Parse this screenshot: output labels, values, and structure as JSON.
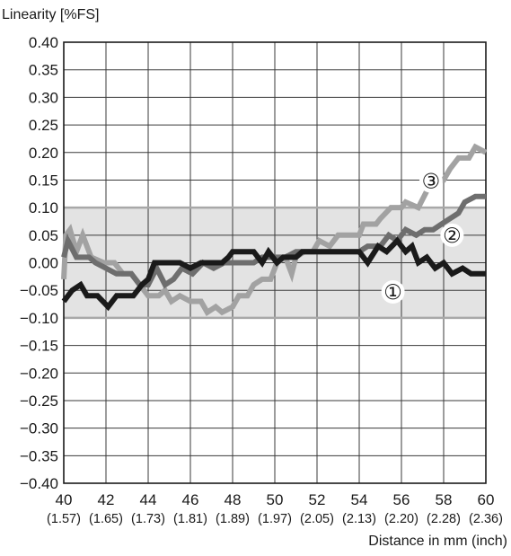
{
  "chart_data": {
    "type": "line",
    "ylabel": "Linearity [%FS]",
    "xlabel": "Distance in mm (inch)",
    "xlim": [
      40,
      60
    ],
    "ylim": [
      -0.4,
      0.4
    ],
    "grid": true,
    "x_ticks": [
      {
        "value": 40,
        "label": "40",
        "sub": "(1.57)"
      },
      {
        "value": 42,
        "label": "42",
        "sub": "(1.65)"
      },
      {
        "value": 44,
        "label": "44",
        "sub": "(1.73)"
      },
      {
        "value": 46,
        "label": "46",
        "sub": "(1.81)"
      },
      {
        "value": 48,
        "label": "48",
        "sub": "(1.89)"
      },
      {
        "value": 50,
        "label": "50",
        "sub": "(1.97)"
      },
      {
        "value": 52,
        "label": "52",
        "sub": "(2.05)"
      },
      {
        "value": 54,
        "label": "54",
        "sub": "(2.13)"
      },
      {
        "value": 56,
        "label": "56",
        "sub": "(2.20)"
      },
      {
        "value": 58,
        "label": "58",
        "sub": "(2.28)"
      },
      {
        "value": 60,
        "label": "60",
        "sub": "(2.36)"
      }
    ],
    "y_ticks": [
      {
        "value": 0.4,
        "label": "0.40"
      },
      {
        "value": 0.35,
        "label": "0.35"
      },
      {
        "value": 0.3,
        "label": "0.30"
      },
      {
        "value": 0.25,
        "label": "0.25"
      },
      {
        "value": 0.2,
        "label": "0.20"
      },
      {
        "value": 0.15,
        "label": "0.15"
      },
      {
        "value": 0.1,
        "label": "0.10"
      },
      {
        "value": 0.05,
        "label": "0.05"
      },
      {
        "value": 0.0,
        "label": "0.00"
      },
      {
        "value": -0.05,
        "label": "−0.05"
      },
      {
        "value": -0.1,
        "label": "−0.10"
      },
      {
        "value": -0.15,
        "label": "−0.15"
      },
      {
        "value": -0.2,
        "label": "−0.20"
      },
      {
        "value": -0.25,
        "label": "−0.25"
      },
      {
        "value": -0.3,
        "label": "−0.30"
      },
      {
        "value": -0.35,
        "label": "−0.35"
      },
      {
        "value": -0.4,
        "label": "−0.40"
      }
    ],
    "tolerance_band": {
      "y_min": -0.1,
      "y_max": 0.1,
      "fill": "#e3e3e3",
      "edge_color": "#a8a8a8"
    },
    "series": [
      {
        "marker": "①",
        "color": "#1a1a1a",
        "label_at": {
          "x": 55.6,
          "y": -0.053
        },
        "points": [
          [
            40,
            -0.07
          ],
          [
            40.4,
            -0.05
          ],
          [
            40.8,
            -0.04
          ],
          [
            41.1,
            -0.06
          ],
          [
            41.6,
            -0.06
          ],
          [
            42.1,
            -0.08
          ],
          [
            42.5,
            -0.06
          ],
          [
            43.3,
            -0.06
          ],
          [
            43.7,
            -0.04
          ],
          [
            44.0,
            -0.03
          ],
          [
            44.3,
            0.0
          ],
          [
            45.0,
            0.0
          ],
          [
            45.5,
            0.0
          ],
          [
            46.0,
            -0.01
          ],
          [
            46.5,
            0.0
          ],
          [
            47.0,
            0.0
          ],
          [
            47.5,
            0.0
          ],
          [
            47.8,
            0.01
          ],
          [
            48.0,
            0.02
          ],
          [
            49.0,
            0.02
          ],
          [
            49.4,
            0.0
          ],
          [
            49.7,
            0.02
          ],
          [
            50.1,
            0.0
          ],
          [
            50.4,
            0.01
          ],
          [
            51.0,
            0.01
          ],
          [
            51.3,
            0.02
          ],
          [
            54.0,
            0.02
          ],
          [
            54.4,
            0.0
          ],
          [
            54.9,
            0.03
          ],
          [
            55.3,
            0.02
          ],
          [
            55.8,
            0.04
          ],
          [
            56.2,
            0.02
          ],
          [
            56.5,
            0.03
          ],
          [
            56.8,
            0.0
          ],
          [
            57.2,
            0.01
          ],
          [
            57.6,
            -0.01
          ],
          [
            58.0,
            0.0
          ],
          [
            58.4,
            -0.02
          ],
          [
            58.9,
            -0.01
          ],
          [
            59.3,
            -0.02
          ],
          [
            60.0,
            -0.02
          ]
        ]
      },
      {
        "marker": "②",
        "color": "#6e6e6e",
        "label_at": {
          "x": 58.4,
          "y": 0.05
        },
        "points": [
          [
            40,
            0.01
          ],
          [
            40.2,
            0.04
          ],
          [
            40.6,
            0.01
          ],
          [
            41.2,
            0.01
          ],
          [
            41.5,
            0.0
          ],
          [
            42.0,
            -0.01
          ],
          [
            42.5,
            -0.02
          ],
          [
            43.2,
            -0.02
          ],
          [
            43.6,
            -0.04
          ],
          [
            44.0,
            -0.04
          ],
          [
            44.4,
            -0.01
          ],
          [
            44.8,
            -0.04
          ],
          [
            45.2,
            -0.03
          ],
          [
            45.6,
            -0.01
          ],
          [
            46.1,
            -0.02
          ],
          [
            46.6,
            0.0
          ],
          [
            47.1,
            -0.01
          ],
          [
            47.6,
            0.0
          ],
          [
            48.0,
            0.0
          ],
          [
            48.5,
            0.0
          ],
          [
            49.0,
            0.0
          ],
          [
            49.4,
            0.01
          ],
          [
            50.0,
            0.01
          ],
          [
            50.5,
            0.01
          ],
          [
            51.0,
            0.02
          ],
          [
            52.0,
            0.02
          ],
          [
            53.0,
            0.02
          ],
          [
            54.0,
            0.02
          ],
          [
            54.4,
            0.03
          ],
          [
            55.0,
            0.03
          ],
          [
            55.4,
            0.05
          ],
          [
            55.8,
            0.04
          ],
          [
            56.2,
            0.06
          ],
          [
            56.7,
            0.05
          ],
          [
            57.1,
            0.06
          ],
          [
            57.5,
            0.06
          ],
          [
            57.9,
            0.07
          ],
          [
            58.3,
            0.08
          ],
          [
            58.7,
            0.09
          ],
          [
            59.0,
            0.11
          ],
          [
            59.5,
            0.12
          ],
          [
            60.0,
            0.12
          ]
        ]
      },
      {
        "marker": "③",
        "color": "#a2a2a2",
        "label_at": {
          "x": 57.4,
          "y": 0.148
        },
        "points": [
          [
            40,
            -0.03
          ],
          [
            40.1,
            0.05
          ],
          [
            40.3,
            0.06
          ],
          [
            40.6,
            0.02
          ],
          [
            40.9,
            0.05
          ],
          [
            41.3,
            0.01
          ],
          [
            41.9,
            0.0
          ],
          [
            42.4,
            0.0
          ],
          [
            42.8,
            -0.02
          ],
          [
            43.2,
            -0.02
          ],
          [
            43.6,
            -0.04
          ],
          [
            44.0,
            -0.06
          ],
          [
            44.5,
            -0.06
          ],
          [
            44.8,
            -0.05
          ],
          [
            45.1,
            -0.07
          ],
          [
            45.5,
            -0.06
          ],
          [
            46.0,
            -0.07
          ],
          [
            46.5,
            -0.07
          ],
          [
            46.8,
            -0.09
          ],
          [
            47.2,
            -0.08
          ],
          [
            47.5,
            -0.09
          ],
          [
            48.0,
            -0.08
          ],
          [
            48.3,
            -0.06
          ],
          [
            48.7,
            -0.06
          ],
          [
            49.0,
            -0.04
          ],
          [
            49.4,
            -0.03
          ],
          [
            49.8,
            -0.03
          ],
          [
            50.1,
            0.0
          ],
          [
            50.5,
            0.01
          ],
          [
            50.8,
            -0.02
          ],
          [
            51.0,
            0.01
          ],
          [
            51.4,
            0.02
          ],
          [
            51.8,
            0.02
          ],
          [
            52.1,
            0.04
          ],
          [
            52.6,
            0.03
          ],
          [
            53.0,
            0.05
          ],
          [
            53.5,
            0.05
          ],
          [
            54.0,
            0.05
          ],
          [
            54.2,
            0.07
          ],
          [
            54.8,
            0.07
          ],
          [
            55.0,
            0.08
          ],
          [
            55.5,
            0.1
          ],
          [
            56.0,
            0.1
          ],
          [
            56.2,
            0.11
          ],
          [
            56.8,
            0.1
          ],
          [
            57.2,
            0.13
          ],
          [
            57.6,
            0.15
          ],
          [
            58.0,
            0.15
          ],
          [
            58.3,
            0.17
          ],
          [
            58.7,
            0.19
          ],
          [
            59.2,
            0.19
          ],
          [
            59.5,
            0.21
          ],
          [
            60.0,
            0.2
          ]
        ]
      }
    ]
  }
}
